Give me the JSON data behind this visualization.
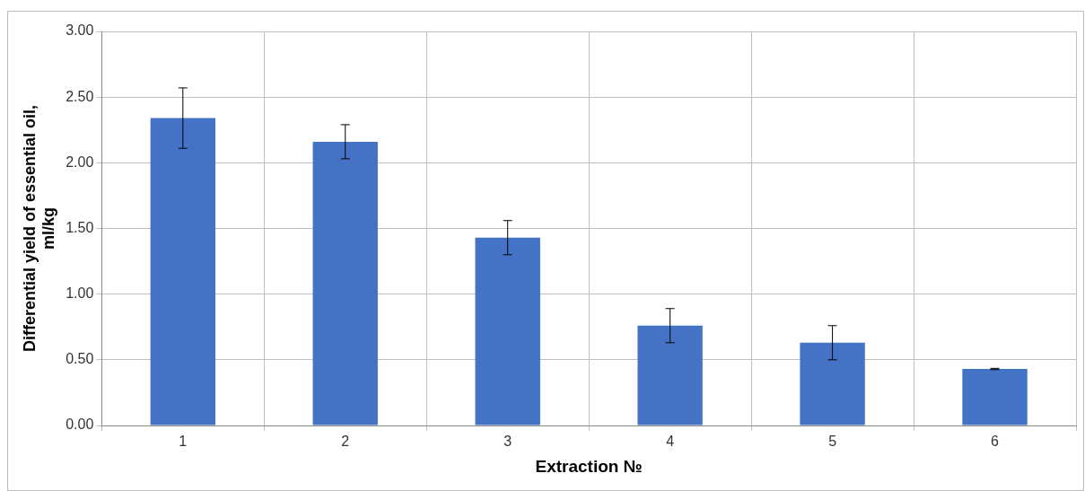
{
  "chart_data": {
    "type": "bar",
    "xlabel": "Extraction №",
    "ylabel": "Differential yield of essential oil, ml/kg",
    "categories": [
      "1",
      "2",
      "3",
      "4",
      "5",
      "6"
    ],
    "values": [
      2.34,
      2.16,
      1.43,
      0.76,
      0.63,
      0.43
    ],
    "errors": [
      0.23,
      0.13,
      0.13,
      0.13,
      0.13,
      0.005
    ],
    "color": "#4472c4",
    "ylim": [
      0,
      3
    ],
    "yticks": [
      {
        "value": 0,
        "label": "0.00"
      },
      {
        "value": 0.5,
        "label": "0.50"
      },
      {
        "value": 1,
        "label": "1.00"
      },
      {
        "value": 1.5,
        "label": "1.50"
      },
      {
        "value": 2,
        "label": "2.00"
      },
      {
        "value": 2.5,
        "label": "2.50"
      },
      {
        "value": 3,
        "label": "3.00"
      }
    ],
    "grid": true
  }
}
